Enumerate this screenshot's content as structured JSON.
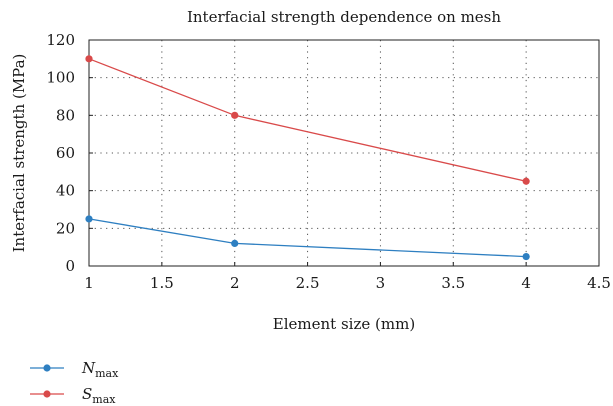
{
  "chart_data": {
    "type": "line",
    "title": "Interfacial strength dependence on mesh",
    "xlabel": "Element size (mm)",
    "ylabel": "Interfacial strength (MPa)",
    "xlim": [
      1,
      4.5
    ],
    "ylim": [
      0,
      120
    ],
    "xticks": [
      "1",
      "1.5",
      "2",
      "2.5",
      "3",
      "3.5",
      "4",
      "4.5"
    ],
    "yticks": [
      "0",
      "20",
      "40",
      "60",
      "80",
      "100",
      "120"
    ],
    "grid": "dotted",
    "legend_position": "bottom-left",
    "series": [
      {
        "name_main": "N",
        "name_sub": "max",
        "color": "#2e7fc1",
        "x": [
          1,
          2,
          4
        ],
        "y": [
          25,
          12,
          5
        ]
      },
      {
        "name_main": "S",
        "name_sub": "max",
        "color": "#d94a4a",
        "x": [
          1,
          2,
          4
        ],
        "y": [
          110,
          80,
          45
        ]
      }
    ]
  }
}
